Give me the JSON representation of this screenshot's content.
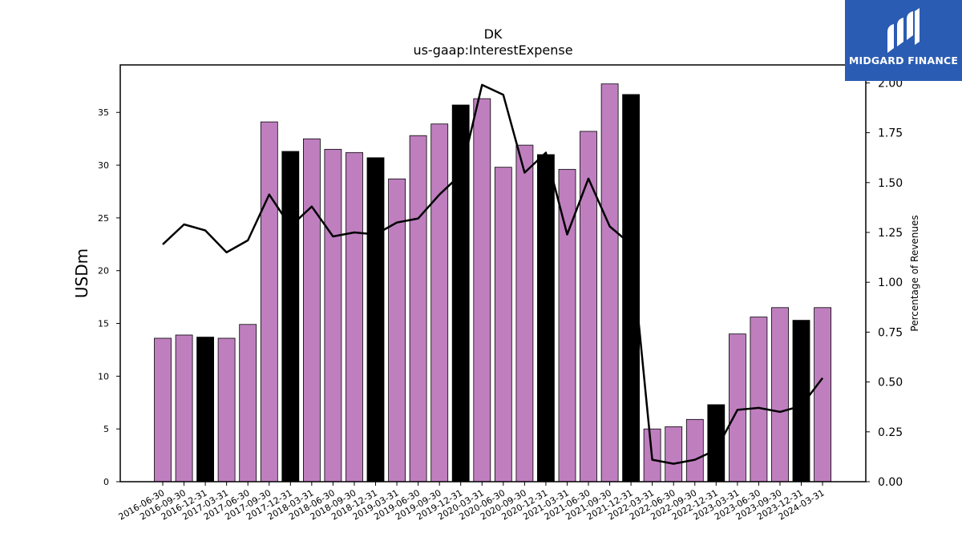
{
  "chart_data": {
    "type": "bar",
    "title": "DK",
    "subtitle": "us-gaap:InterestExpense",
    "ylabel": "USDm",
    "ylabel_right": "Percentage of Revenues",
    "ylim": [
      0,
      39.5
    ],
    "ylim_right": [
      0,
      2.09
    ],
    "yticks": [
      0,
      5,
      10,
      15,
      20,
      25,
      30,
      35
    ],
    "yticks_right": [
      "0.00",
      "0.25",
      "0.50",
      "0.75",
      "1.00",
      "1.25",
      "1.50",
      "1.75",
      "2.00"
    ],
    "categories": [
      "2016-06-30",
      "2016-09-30",
      "2016-12-31",
      "2017-03-31",
      "2017-06-30",
      "2017-09-30",
      "2017-12-31",
      "2018-03-31",
      "2018-06-30",
      "2018-09-30",
      "2018-12-31",
      "2019-03-31",
      "2019-06-30",
      "2019-09-30",
      "2019-12-31",
      "2020-03-31",
      "2020-06-30",
      "2020-09-30",
      "2020-12-31",
      "2021-03-31",
      "2021-06-30",
      "2021-09-30",
      "2021-12-31",
      "2022-03-31",
      "2022-06-30",
      "2022-09-30",
      "2022-12-31",
      "2023-03-31",
      "2023-06-30",
      "2023-09-30",
      "2023-12-31",
      "2024-03-31"
    ],
    "series": [
      {
        "type": "bar",
        "values": [
          13.6,
          13.9,
          13.7,
          13.6,
          14.9,
          34.1,
          31.3,
          32.5,
          31.5,
          31.2,
          30.7,
          28.7,
          32.8,
          33.9,
          35.7,
          36.3,
          29.8,
          31.9,
          31.0,
          29.6,
          33.2,
          37.7,
          36.7,
          5.0,
          5.2,
          5.9,
          7.3,
          14.0,
          15.6,
          16.5,
          15.3,
          16.5
        ]
      },
      {
        "type": "line",
        "axis": "right",
        "values": [
          1.19,
          1.29,
          1.26,
          1.15,
          1.21,
          1.44,
          1.28,
          1.38,
          1.23,
          1.25,
          1.24,
          1.3,
          1.32,
          1.44,
          1.54,
          1.99,
          1.94,
          1.55,
          1.65,
          1.24,
          1.52,
          1.28,
          1.19,
          0.11,
          0.09,
          0.11,
          0.16,
          0.36,
          0.37,
          0.35,
          0.38,
          0.52
        ]
      }
    ],
    "colors": {
      "bar": "#bf7fbf",
      "bar_year_end": "#000000",
      "line": "#000000"
    }
  },
  "logo": {
    "text": "MIDGARD FINANCE",
    "background": "#2a5cb3"
  }
}
